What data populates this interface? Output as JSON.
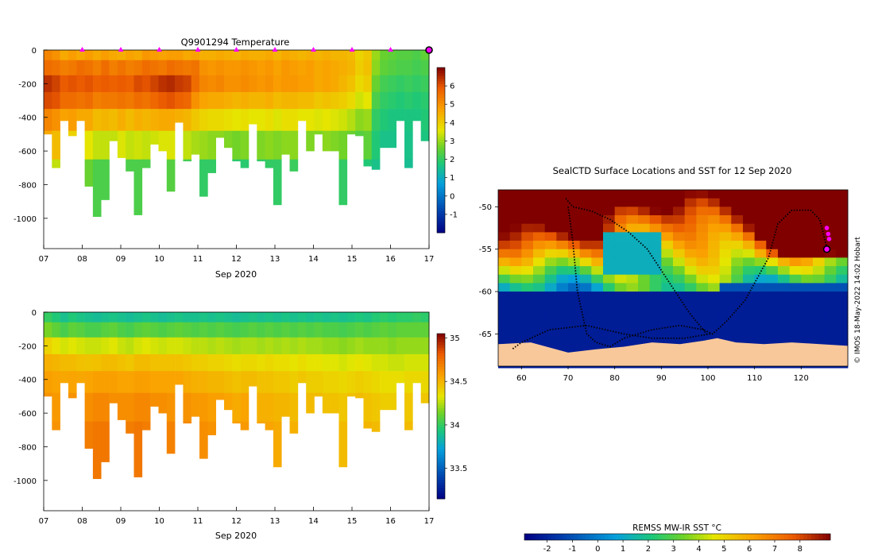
{
  "chart_data": [
    {
      "type": "heatmap",
      "id": "temperature",
      "title": "Q9901294  Temperature",
      "xlabel": "Sep 2020",
      "ylabel": "",
      "x_ticks": [
        "07",
        "08",
        "09",
        "10",
        "11",
        "12",
        "13",
        "14",
        "15",
        "16",
        "17"
      ],
      "y_ticks": [
        "0",
        "-200",
        "-400",
        "-600",
        "-800",
        "-1000"
      ],
      "xlim": [
        7,
        17
      ],
      "ylim": [
        -1180,
        0
      ],
      "colorbar_ticks": [
        "-1",
        "0",
        "1",
        "2",
        "3",
        "4",
        "5",
        "6"
      ],
      "colorbar_range": [
        -2,
        7
      ],
      "profile_markers_day": [
        8,
        9,
        10,
        11,
        12,
        13,
        14,
        15,
        16
      ],
      "profile_start_day": 7.0,
      "profile_end_day": 17.0,
      "profile_depths_m": [
        500,
        700,
        420,
        510,
        420,
        810,
        990,
        890,
        540,
        640,
        720,
        980,
        700,
        560,
        600,
        840,
        430,
        660,
        620,
        870,
        730,
        520,
        580,
        660,
        700,
        440,
        660,
        700,
        920,
        620,
        720,
        420,
        600,
        500,
        600,
        600,
        920,
        500,
        510,
        690,
        710,
        580,
        580,
        420,
        700,
        420,
        540
      ],
      "profile_values_deg_c": [
        [
          5.2,
          5.6,
          6.4,
          6.1,
          5.2,
          4.6,
          3.6
        ],
        [
          5.0,
          5.5,
          6.2,
          6.0,
          5.0,
          4.3,
          3.3
        ],
        [
          4.6,
          5.3,
          5.9,
          5.6,
          4.7,
          3.8,
          2.8
        ],
        [
          4.8,
          5.4,
          6.0,
          5.6,
          4.8,
          3.9,
          2.9
        ],
        [
          4.6,
          5.6,
          5.9,
          5.5,
          4.6,
          3.6,
          2.6
        ],
        [
          4.8,
          5.5,
          6.0,
          5.6,
          4.6,
          3.6,
          2.6
        ],
        [
          4.6,
          5.3,
          5.8,
          5.3,
          4.3,
          3.3,
          2.3
        ],
        [
          4.8,
          5.6,
          5.9,
          5.4,
          4.4,
          3.3,
          2.3
        ],
        [
          4.6,
          5.3,
          5.8,
          5.4,
          4.3,
          3.3,
          2.3
        ],
        [
          4.5,
          5.5,
          5.9,
          5.5,
          4.5,
          3.5,
          2.5
        ],
        [
          4.7,
          5.3,
          5.8,
          5.4,
          4.3,
          3.3,
          2.3
        ],
        [
          4.6,
          5.4,
          6.1,
          5.6,
          4.5,
          3.4,
          2.3
        ],
        [
          4.9,
          5.6,
          6.0,
          5.5,
          4.4,
          3.3,
          2.3
        ],
        [
          4.8,
          5.5,
          6.2,
          5.7,
          4.5,
          3.4,
          2.4
        ],
        [
          4.7,
          5.4,
          6.4,
          5.9,
          4.6,
          3.5,
          2.4
        ],
        [
          4.8,
          5.6,
          6.5,
          6.0,
          4.6,
          3.5,
          2.4
        ],
        [
          4.8,
          5.5,
          6.3,
          5.8,
          4.5,
          3.4,
          2.3
        ],
        [
          4.6,
          5.4,
          6.2,
          5.7,
          4.4,
          3.3,
          2.2
        ],
        [
          4.7,
          5.5,
          5.6,
          5.0,
          4.1,
          3.1,
          2.0
        ],
        [
          4.5,
          5.0,
          5.2,
          4.7,
          3.9,
          3.0,
          2.0
        ],
        [
          4.5,
          4.9,
          5.1,
          4.6,
          3.8,
          2.9,
          2.0
        ],
        [
          4.6,
          5.0,
          5.2,
          4.6,
          3.8,
          2.9,
          2.0
        ],
        [
          4.5,
          4.9,
          5.0,
          4.5,
          3.7,
          2.8,
          1.9
        ],
        [
          4.4,
          4.9,
          5.0,
          4.4,
          3.6,
          2.7,
          1.9
        ],
        [
          4.6,
          5.0,
          5.1,
          4.5,
          3.7,
          2.8,
          1.9
        ],
        [
          4.5,
          4.9,
          5.0,
          4.4,
          3.6,
          2.8,
          2.0
        ],
        [
          4.5,
          4.8,
          4.9,
          4.4,
          3.6,
          2.8,
          2.0
        ],
        [
          4.6,
          4.9,
          5.0,
          4.5,
          3.7,
          2.9,
          2.0
        ],
        [
          4.4,
          4.7,
          4.8,
          4.3,
          3.5,
          2.8,
          2.0
        ],
        [
          4.6,
          4.9,
          4.9,
          4.4,
          3.7,
          2.9,
          2.1
        ],
        [
          4.5,
          4.8,
          4.9,
          4.4,
          3.7,
          2.9,
          2.1
        ],
        [
          4.4,
          4.7,
          4.8,
          4.3,
          3.6,
          2.9,
          2.1
        ],
        [
          4.5,
          4.8,
          4.8,
          4.3,
          3.6,
          2.8,
          2.0
        ],
        [
          4.4,
          4.6,
          4.6,
          4.1,
          3.5,
          2.8,
          2.0
        ],
        [
          4.5,
          4.7,
          4.7,
          4.2,
          3.6,
          2.9,
          2.1
        ],
        [
          4.4,
          4.6,
          4.6,
          4.1,
          3.5,
          2.8,
          2.1
        ],
        [
          4.4,
          4.5,
          4.4,
          4.0,
          3.4,
          2.7,
          2.0
        ],
        [
          4.3,
          4.4,
          4.2,
          3.8,
          3.2,
          2.6,
          1.9
        ],
        [
          3.9,
          4.0,
          3.8,
          3.4,
          2.9,
          2.4,
          1.8
        ],
        [
          4.1,
          4.2,
          4.0,
          3.6,
          3.0,
          2.5,
          1.8
        ],
        [
          3.0,
          2.9,
          2.6,
          2.3,
          2.0,
          1.8,
          1.6
        ],
        [
          2.6,
          2.5,
          2.2,
          2.0,
          1.8,
          1.6,
          1.5
        ],
        [
          2.5,
          2.4,
          2.1,
          1.9,
          1.7,
          1.6,
          1.5
        ],
        [
          2.4,
          2.3,
          2.0,
          1.8,
          1.7,
          1.6,
          1.5
        ],
        [
          2.4,
          2.3,
          2.1,
          1.9,
          1.7,
          1.6,
          1.5
        ],
        [
          2.3,
          2.2,
          2.0,
          1.8,
          1.7,
          1.6,
          1.5
        ],
        [
          2.5,
          2.3,
          2.1,
          1.9,
          1.8,
          1.7,
          1.6
        ]
      ]
    },
    {
      "type": "heatmap",
      "id": "salinity",
      "title": "",
      "xlabel": "Sep 2020",
      "ylabel": "",
      "x_ticks": [
        "07",
        "08",
        "09",
        "10",
        "11",
        "12",
        "13",
        "14",
        "15",
        "16",
        "17"
      ],
      "y_ticks": [
        "0",
        "-200",
        "-400",
        "-600",
        "-800",
        "-1000"
      ],
      "xlim": [
        7,
        17
      ],
      "ylim": [
        -1180,
        0
      ],
      "colorbar_ticks": [
        "33.5",
        "34",
        "34.5",
        "35"
      ],
      "colorbar_range": [
        33.15,
        35.05
      ],
      "profile_values_psu": [
        [
          34.0,
          34.15,
          34.4,
          34.52,
          34.58,
          34.62,
          34.64
        ],
        [
          33.95,
          34.1,
          34.35,
          34.5,
          34.56,
          34.6,
          34.62
        ],
        [
          33.9,
          34.05,
          34.3,
          34.48,
          34.55,
          34.6,
          34.63
        ],
        [
          33.95,
          34.1,
          34.32,
          34.48,
          34.56,
          34.62,
          34.66
        ],
        [
          33.92,
          34.08,
          34.3,
          34.46,
          34.55,
          34.62,
          34.66
        ],
        [
          33.9,
          34.05,
          34.28,
          34.45,
          34.56,
          34.64,
          34.7
        ],
        [
          33.88,
          34.05,
          34.28,
          34.46,
          34.58,
          34.66,
          34.72
        ],
        [
          33.9,
          34.08,
          34.3,
          34.48,
          34.58,
          34.66,
          34.72
        ],
        [
          33.92,
          34.1,
          34.32,
          34.48,
          34.58,
          34.64,
          34.7
        ],
        [
          33.9,
          34.06,
          34.28,
          34.46,
          34.56,
          34.64,
          34.7
        ],
        [
          33.88,
          34.04,
          34.26,
          34.44,
          34.56,
          34.64,
          34.7
        ],
        [
          33.9,
          34.08,
          34.3,
          34.48,
          34.58,
          34.66,
          34.72
        ],
        [
          33.92,
          34.1,
          34.32,
          34.48,
          34.58,
          34.66,
          34.7
        ],
        [
          33.9,
          34.08,
          34.3,
          34.46,
          34.56,
          34.64,
          34.7
        ],
        [
          33.88,
          34.06,
          34.28,
          34.46,
          34.56,
          34.64,
          34.68
        ],
        [
          33.9,
          34.08,
          34.3,
          34.46,
          34.56,
          34.62,
          34.68
        ],
        [
          33.92,
          34.1,
          34.3,
          34.46,
          34.56,
          34.62,
          34.66
        ],
        [
          33.9,
          34.08,
          34.28,
          34.44,
          34.54,
          34.62,
          34.66
        ],
        [
          33.9,
          34.06,
          34.26,
          34.42,
          34.52,
          34.6,
          34.64
        ],
        [
          33.92,
          34.08,
          34.26,
          34.42,
          34.52,
          34.6,
          34.64
        ],
        [
          33.9,
          34.06,
          34.24,
          34.4,
          34.5,
          34.58,
          34.62
        ],
        [
          33.92,
          34.08,
          34.26,
          34.4,
          34.5,
          34.58,
          34.62
        ],
        [
          33.9,
          34.06,
          34.24,
          34.38,
          34.48,
          34.56,
          34.6
        ],
        [
          33.88,
          34.04,
          34.22,
          34.36,
          34.46,
          34.54,
          34.58
        ],
        [
          33.9,
          34.06,
          34.24,
          34.38,
          34.48,
          34.56,
          34.6
        ],
        [
          33.92,
          34.08,
          34.24,
          34.38,
          34.48,
          34.54,
          34.58
        ],
        [
          33.9,
          34.06,
          34.22,
          34.36,
          34.46,
          34.52,
          34.56
        ],
        [
          33.92,
          34.08,
          34.24,
          34.38,
          34.46,
          34.52,
          34.56
        ],
        [
          33.9,
          34.06,
          34.22,
          34.36,
          34.44,
          34.5,
          34.54
        ],
        [
          33.92,
          34.08,
          34.24,
          34.36,
          34.44,
          34.5,
          34.54
        ],
        [
          33.9,
          34.06,
          34.22,
          34.34,
          34.42,
          34.48,
          34.52
        ],
        [
          33.92,
          34.08,
          34.24,
          34.36,
          34.44,
          34.5,
          34.54
        ],
        [
          33.9,
          34.06,
          34.22,
          34.34,
          34.42,
          34.48,
          34.52
        ],
        [
          33.92,
          34.08,
          34.22,
          34.34,
          34.42,
          34.48,
          34.5
        ],
        [
          33.9,
          34.06,
          34.2,
          34.32,
          34.4,
          34.46,
          34.5
        ],
        [
          33.92,
          34.06,
          34.2,
          34.32,
          34.4,
          34.46,
          34.5
        ],
        [
          33.9,
          34.04,
          34.18,
          34.3,
          34.38,
          34.44,
          34.48
        ],
        [
          33.92,
          34.06,
          34.2,
          34.32,
          34.4,
          34.46,
          34.5
        ],
        [
          33.94,
          34.08,
          34.22,
          34.34,
          34.42,
          34.48,
          34.52
        ],
        [
          33.92,
          34.06,
          34.2,
          34.32,
          34.4,
          34.46,
          34.5
        ],
        [
          33.96,
          34.08,
          34.2,
          34.3,
          34.38,
          34.44,
          34.48
        ],
        [
          33.98,
          34.1,
          34.2,
          34.3,
          34.36,
          34.42,
          34.46
        ],
        [
          33.96,
          34.08,
          34.18,
          34.28,
          34.36,
          34.42,
          34.46
        ],
        [
          33.98,
          34.1,
          34.2,
          34.28,
          34.36,
          34.42,
          34.46
        ],
        [
          33.98,
          34.1,
          34.2,
          34.3,
          34.38,
          34.44,
          34.48
        ],
        [
          34.0,
          34.1,
          34.2,
          34.3,
          34.38,
          34.44,
          34.48
        ],
        [
          33.98,
          34.1,
          34.2,
          34.3,
          34.38,
          34.44,
          34.48
        ]
      ]
    },
    {
      "type": "heatmap",
      "id": "sst_map",
      "title": "SealCTD Surface Locations and SST for 12 Sep 2020",
      "xlabel": "",
      "ylabel": "",
      "x_ticks": [
        "60",
        "70",
        "80",
        "90",
        "100",
        "110",
        "120"
      ],
      "y_ticks": [
        "-50",
        "-55",
        "-60",
        "-65"
      ],
      "xlim": [
        55,
        130
      ],
      "ylim": [
        -68.8,
        -48
      ],
      "colorbar_label": "REMSS MW-IR SST °C",
      "colorbar_ticks": [
        "-2",
        "-1",
        "0",
        "1",
        "2",
        "3",
        "4",
        "5",
        "6",
        "7",
        "8"
      ],
      "colorbar_range": [
        -2.9,
        9.2
      ],
      "side_credit": "© IMOS 18-May-2022 14:02 Hobart",
      "track_lonlat": [
        [
          69.5,
          -49
        ],
        [
          71,
          -50
        ],
        [
          75,
          -50.5
        ],
        [
          79,
          -51.5
        ],
        [
          83,
          -53
        ],
        [
          87,
          -55
        ],
        [
          90,
          -57.5
        ],
        [
          93,
          -60
        ],
        [
          96,
          -62.5
        ],
        [
          99,
          -64.5
        ],
        [
          101,
          -65
        ],
        [
          104,
          -63.5
        ],
        [
          108,
          -61
        ],
        [
          113,
          -56
        ],
        [
          115,
          -52
        ],
        [
          118,
          -50.4
        ],
        [
          122,
          -50.4
        ],
        [
          124,
          -51.5
        ],
        [
          125.5,
          -54.8
        ]
      ],
      "track2_lonlat": [
        [
          70,
          -50
        ],
        [
          71,
          -54
        ],
        [
          72,
          -60
        ],
        [
          74,
          -65
        ],
        [
          76,
          -66
        ],
        [
          79,
          -66.5
        ],
        [
          82,
          -65.5
        ],
        [
          88,
          -64.5
        ],
        [
          94,
          -64
        ],
        [
          99,
          -64.5
        ],
        [
          100,
          -65.2
        ]
      ],
      "track3_lonlat": [
        [
          100.5,
          -65
        ],
        [
          95,
          -65.5
        ],
        [
          88,
          -65.5
        ],
        [
          82,
          -65
        ],
        [
          74,
          -64
        ],
        [
          66,
          -64.5
        ],
        [
          60,
          -66
        ],
        [
          58,
          -66.8
        ]
      ],
      "recent_positions_lonlat": [
        [
          125.5,
          -52.5
        ],
        [
          125.8,
          -53.2
        ],
        [
          126,
          -53.8
        ]
      ],
      "current_position_lonlat": [
        125.5,
        -55
      ]
    }
  ]
}
